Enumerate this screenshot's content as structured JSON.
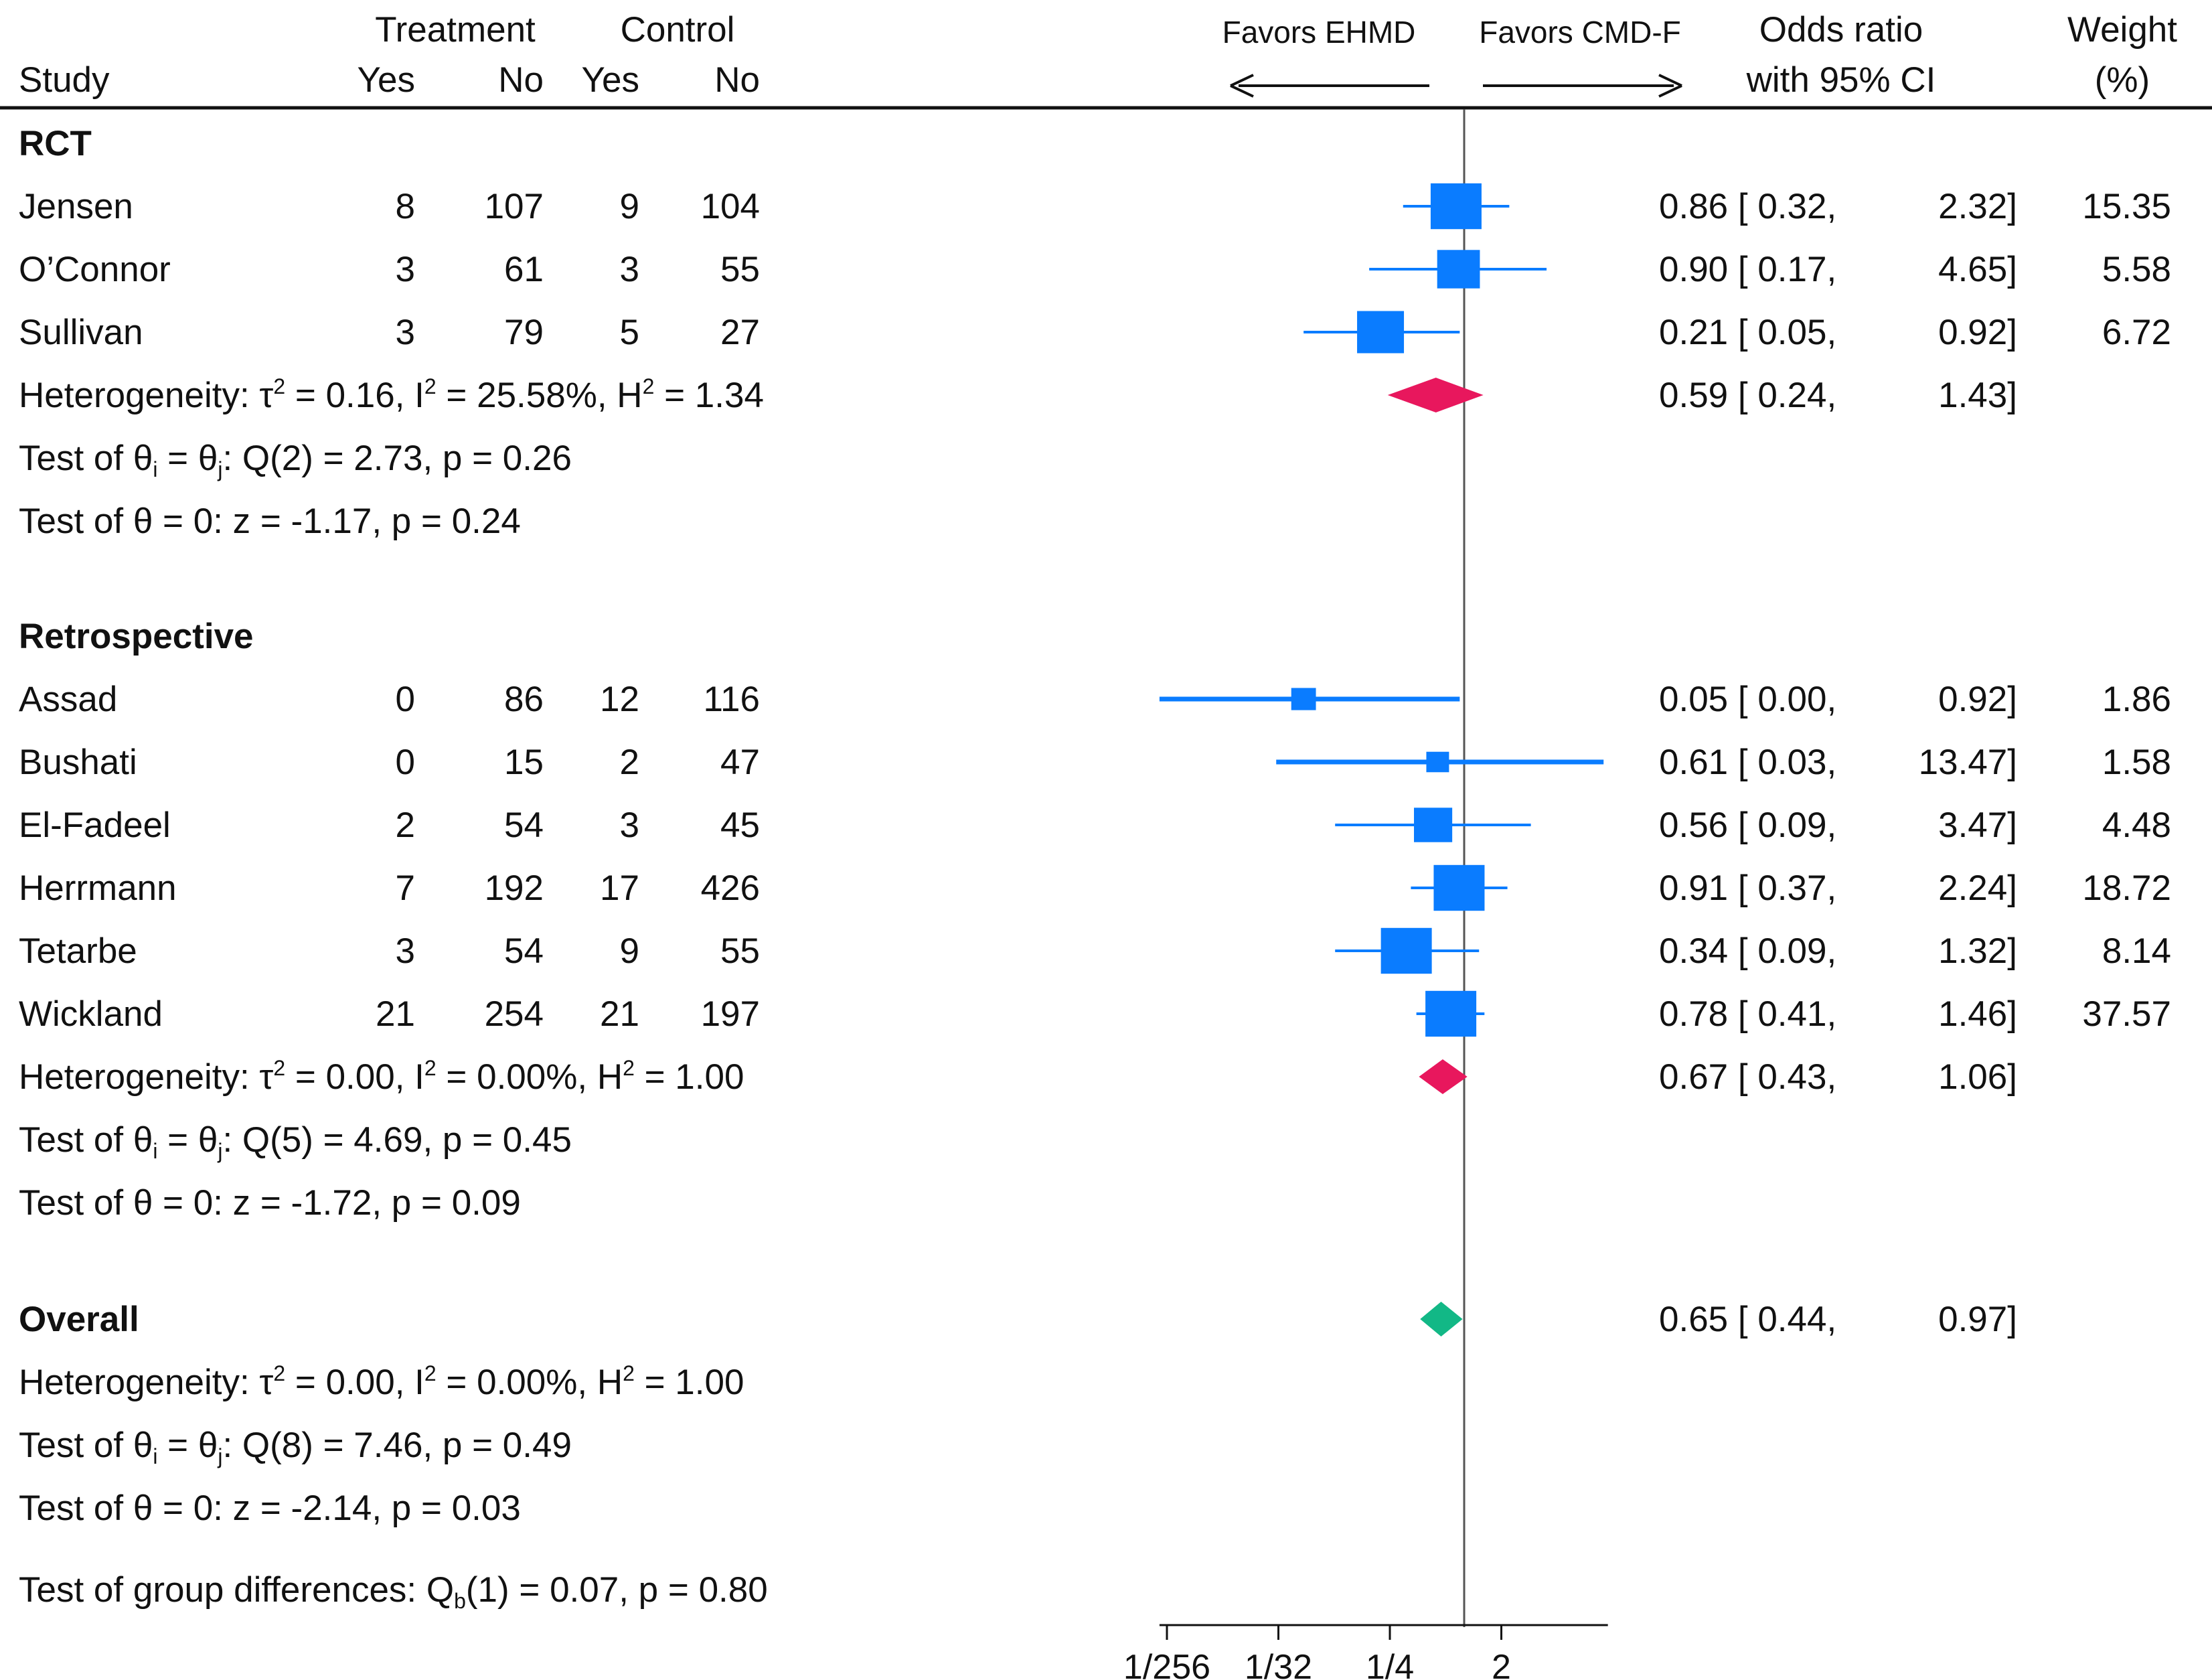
{
  "chart_data": {
    "type": "forest",
    "effect_measure": "Odds ratio",
    "header": {
      "study": "Study",
      "treatment": "Treatment",
      "control": "Control",
      "yes": "Yes",
      "no": "No",
      "favors_left": "Favors EHMD",
      "favors_right": "Favors CMD-F",
      "or_line1": "Odds ratio",
      "or_line2": "with 95% CI",
      "weight_line1": "Weight",
      "weight_line2": "(%)"
    },
    "x_axis": {
      "scale": "log2",
      "ticks": [
        {
          "label": "1/256",
          "value": 0.00390625
        },
        {
          "label": "1/32",
          "value": 0.03125
        },
        {
          "label": "1/4",
          "value": 0.25
        },
        {
          "label": "2",
          "value": 2
        }
      ],
      "range": [
        0.0034,
        14.6
      ],
      "null_value": 1
    },
    "groups": [
      {
        "name": "RCT",
        "studies": [
          {
            "study": "Jensen",
            "t_yes": "8",
            "t_no": "107",
            "c_yes": "9",
            "c_no": "104",
            "or": 0.86,
            "lo": 0.32,
            "hi": 2.32,
            "or_text": "0.86",
            "lo_text": "0.32,",
            "hi_text": "2.32]",
            "weight": "15.35"
          },
          {
            "study": "O’Connor",
            "t_yes": "3",
            "t_no": "61",
            "c_yes": "3",
            "c_no": "55",
            "or": 0.9,
            "lo": 0.17,
            "hi": 4.65,
            "or_text": "0.90",
            "lo_text": "0.17,",
            "hi_text": "4.65]",
            "weight": "5.58"
          },
          {
            "study": "Sullivan",
            "t_yes": "3",
            "t_no": "79",
            "c_yes": "5",
            "c_no": "27",
            "or": 0.21,
            "lo": 0.05,
            "hi": 0.92,
            "or_text": "0.21",
            "lo_text": "0.05,",
            "hi_text": "0.92]",
            "weight": "6.72"
          }
        ],
        "pooled": {
          "or": 0.59,
          "lo": 0.24,
          "hi": 1.43,
          "or_text": "0.59",
          "lo_text": "0.24,",
          "hi_text": "1.43]"
        },
        "heterogeneity": {
          "prefix": "Heterogeneity: τ",
          "tau2": " = 0.16, I",
          "i2": " = 25.58%, H",
          "h2": " = 1.34"
        },
        "test_homog": {
          "prefix": "Test of θ",
          "mid": " = θ",
          "suffix": ": Q(2) = 2.73, p = 0.26"
        },
        "test_zero": "Test of θ = 0: z = -1.17, p = 0.24"
      },
      {
        "name": "Retrospective",
        "studies": [
          {
            "study": "Assad",
            "t_yes": "0",
            "t_no": "86",
            "c_yes": "12",
            "c_no": "116",
            "or": 0.05,
            "lo": 0.0034,
            "hi": 0.92,
            "or_text": "0.05",
            "lo_text": "0.00,",
            "hi_text": "0.92]",
            "weight": "1.86"
          },
          {
            "study": "Bushati",
            "t_yes": "0",
            "t_no": "15",
            "c_yes": "2",
            "c_no": "47",
            "or": 0.61,
            "lo": 0.03,
            "hi": 13.47,
            "or_text": "0.61",
            "lo_text": "0.03,",
            "hi_text": "13.47]",
            "weight": "1.58"
          },
          {
            "study": "El-Fadeel",
            "t_yes": "2",
            "t_no": "54",
            "c_yes": "3",
            "c_no": "45",
            "or": 0.56,
            "lo": 0.09,
            "hi": 3.47,
            "or_text": "0.56",
            "lo_text": "0.09,",
            "hi_text": "3.47]",
            "weight": "4.48"
          },
          {
            "study": "Herrmann",
            "t_yes": "7",
            "t_no": "192",
            "c_yes": "17",
            "c_no": "426",
            "or": 0.91,
            "lo": 0.37,
            "hi": 2.24,
            "or_text": "0.91",
            "lo_text": "0.37,",
            "hi_text": "2.24]",
            "weight": "18.72"
          },
          {
            "study": "Tetarbe",
            "t_yes": "3",
            "t_no": "54",
            "c_yes": "9",
            "c_no": "55",
            "or": 0.34,
            "lo": 0.09,
            "hi": 1.32,
            "or_text": "0.34",
            "lo_text": "0.09,",
            "hi_text": "1.32]",
            "weight": "8.14"
          },
          {
            "study": "Wickland",
            "t_yes": "21",
            "t_no": "254",
            "c_yes": "21",
            "c_no": "197",
            "or": 0.78,
            "lo": 0.41,
            "hi": 1.46,
            "or_text": "0.78",
            "lo_text": "0.41,",
            "hi_text": "1.46]",
            "weight": "37.57"
          }
        ],
        "pooled": {
          "or": 0.67,
          "lo": 0.43,
          "hi": 1.06,
          "or_text": "0.67",
          "lo_text": "0.43,",
          "hi_text": "1.06]"
        },
        "heterogeneity": {
          "prefix": "Heterogeneity: τ",
          "tau2": " = 0.00, I",
          "i2": " = 0.00%, H",
          "h2": " = 1.00"
        },
        "test_homog": {
          "prefix": "Test of θ",
          "mid": " = θ",
          "suffix": ": Q(5) = 4.69, p = 0.45"
        },
        "test_zero": "Test of θ = 0: z = -1.72, p = 0.09"
      }
    ],
    "overall": {
      "name": "Overall",
      "pooled": {
        "or": 0.65,
        "lo": 0.44,
        "hi": 0.97,
        "or_text": "0.65",
        "lo_text": "0.44,",
        "hi_text": "0.97]"
      },
      "heterogeneity": {
        "prefix": "Heterogeneity: τ",
        "tau2": " = 0.00, I",
        "i2": " = 0.00%, H",
        "h2": " = 1.00"
      },
      "test_homog": {
        "prefix": "Test of θ",
        "mid": " = θ",
        "suffix": ": Q(8) = 7.46, p = 0.49"
      },
      "test_zero": "Test of θ = 0: z = -2.14, p = 0.03",
      "group_diff": {
        "prefix": "Test of group differences: Q",
        "sub": "b",
        "suffix": "(1) = 0.07, p = 0.80"
      }
    },
    "sup_2": "2",
    "sub_i": "i",
    "sub_j": "j",
    "colors": {
      "study_marker": "#0a7cff",
      "group_diamond": "#e8175d",
      "overall_diamond": "#12b886",
      "text": "#111111",
      "rule": "#111111",
      "null_line": "#555555"
    }
  }
}
